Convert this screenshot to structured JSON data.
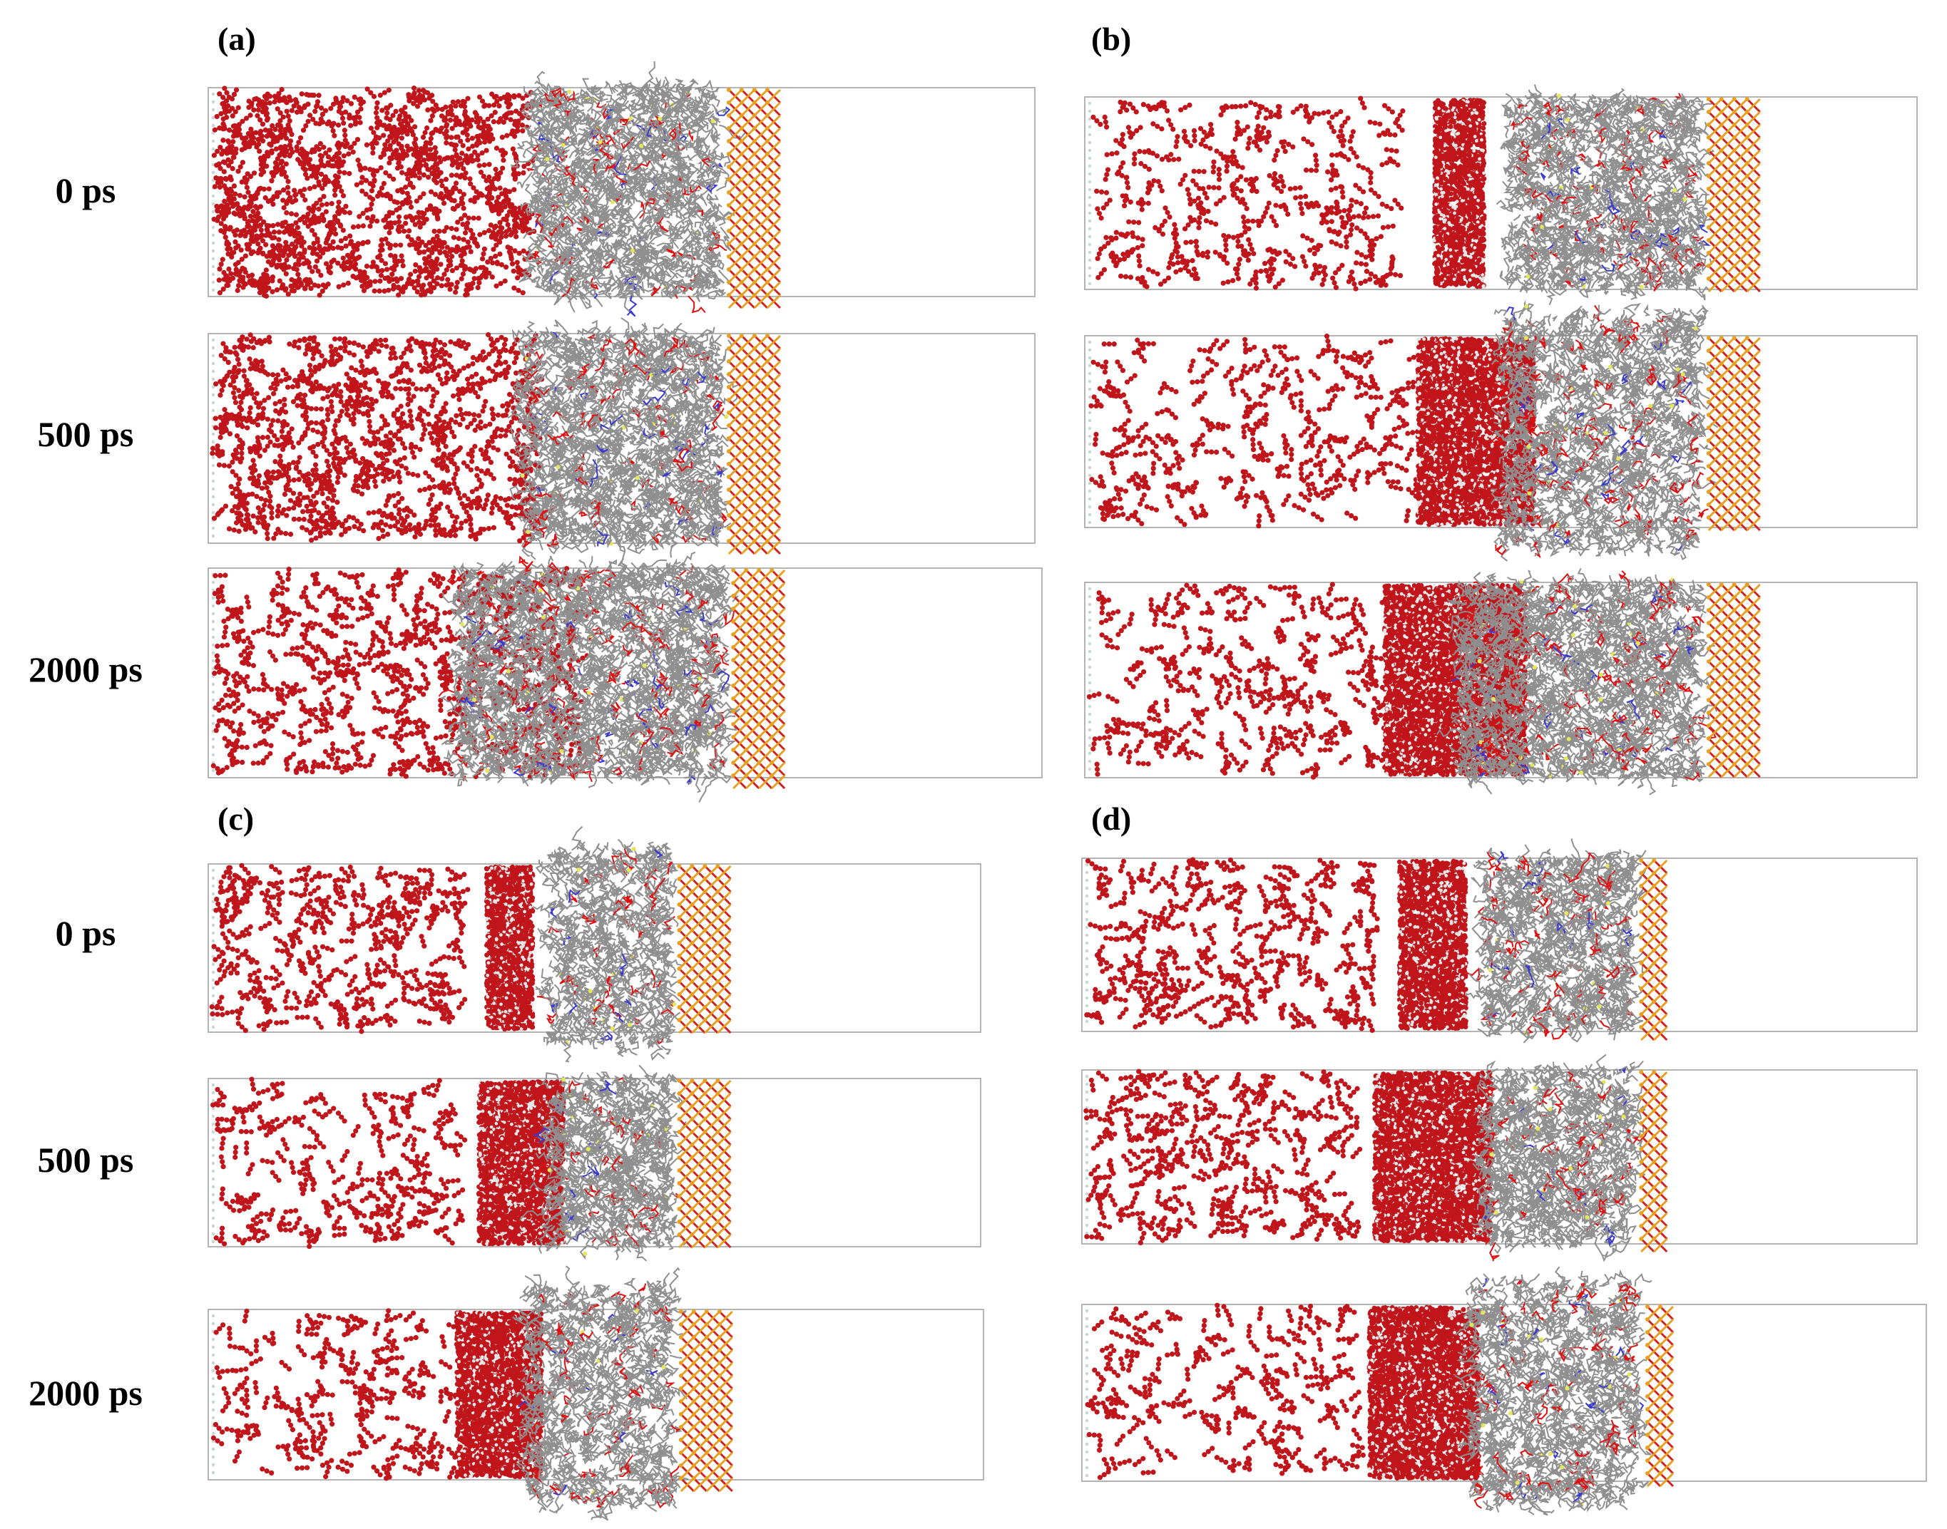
{
  "panels": [
    {
      "label": "(a)",
      "times": [
        "0 ps",
        "500 ps",
        "2000 ps"
      ]
    },
    {
      "label": "(b)",
      "times": [
        "",
        "",
        ""
      ]
    },
    {
      "label": "(c)",
      "times": [
        "0 ps",
        "500 ps",
        "2000 ps"
      ]
    },
    {
      "label": "(d)",
      "times": [
        "",
        "",
        ""
      ]
    }
  ],
  "colors": {
    "water_oxygen": "#c0151b",
    "oil_chain": "#8f8f8f",
    "polar_bond": "#e01010",
    "nitrogen": "#3a3ad0",
    "sulfur": "#e6e65a",
    "silica_silicon": "#e8a020",
    "silica_oxygen": "#d02020",
    "box_edge": "#b4b4b4"
  }
}
